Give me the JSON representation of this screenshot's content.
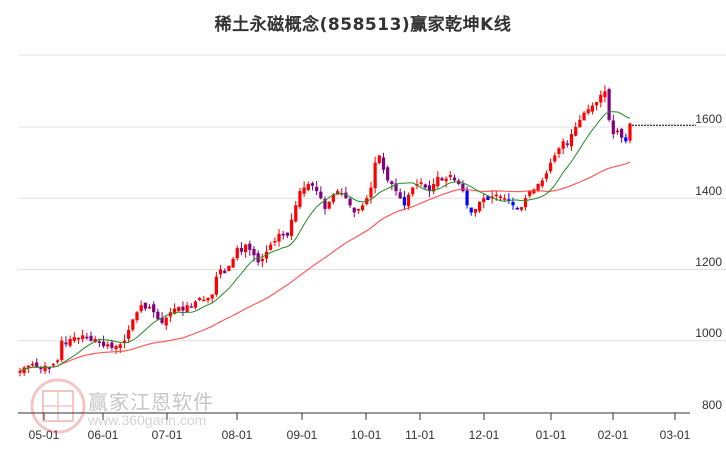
{
  "title": "稀土永磁概念(858513)赢家乾坤K线",
  "watermark": {
    "text": "赢家江恩软件",
    "url": "www.360gann.com",
    "seal": [
      "江",
      "赢",
      "恩",
      "家"
    ]
  },
  "colors": {
    "up": "#ff0000",
    "down": "#0000ff",
    "down_alt": "#800080",
    "ma_short": "#228b22",
    "ma_long": "#ff4040",
    "grid": "#e0e0e0",
    "axis": "#333333"
  },
  "chart_data": {
    "type": "candlestick",
    "title": "稀土永磁概念(858513)赢家乾坤K线",
    "xlabel": "",
    "ylabel": "",
    "ylim": [
      800,
      1730
    ],
    "y_ticks": [
      800,
      1000,
      1200,
      1400,
      1600
    ],
    "x_ticks": [
      "05-01",
      "06-01",
      "07-01",
      "08-01",
      "09-01",
      "10-01",
      "11-01",
      "12-01",
      "01-01",
      "02-01",
      "03-01"
    ],
    "last_price_line": 1605,
    "approx_closes": [
      915,
      925,
      930,
      935,
      925,
      920,
      930,
      925,
      935,
      945,
      1000,
      990,
      1005,
      1010,
      1008,
      1015,
      1010,
      1000,
      1005,
      995,
      985,
      990,
      980,
      985,
      990,
      1000,
      1030,
      1060,
      1080,
      1100,
      1090,
      1095,
      1080,
      1060,
      1050,
      1065,
      1080,
      1090,
      1095,
      1085,
      1100,
      1095,
      1110,
      1120,
      1115,
      1120,
      1130,
      1180,
      1200,
      1190,
      1210,
      1230,
      1260,
      1250,
      1270,
      1255,
      1240,
      1220,
      1230,
      1250,
      1270,
      1280,
      1300,
      1300,
      1295,
      1340,
      1380,
      1420,
      1430,
      1440,
      1435,
      1420,
      1400,
      1370,
      1390,
      1410,
      1420,
      1415,
      1400,
      1380,
      1360,
      1370,
      1380,
      1400,
      1430,
      1500,
      1520,
      1480,
      1450,
      1440,
      1420,
      1400,
      1380,
      1410,
      1430,
      1440,
      1445,
      1430,
      1420,
      1440,
      1460,
      1450,
      1455,
      1465,
      1450,
      1440,
      1420,
      1380,
      1360,
      1370,
      1390,
      1400,
      1395,
      1405,
      1410,
      1405,
      1400,
      1395,
      1380,
      1370,
      1375,
      1400,
      1420,
      1425,
      1440,
      1450,
      1470,
      1500,
      1520,
      1540,
      1560,
      1550,
      1580,
      1600,
      1620,
      1640,
      1650,
      1660,
      1670,
      1690,
      1700,
      1620,
      1580,
      1590,
      1570,
      1560,
      1610
    ],
    "series": [
      {
        "name": "K线",
        "type": "candlestick"
      },
      {
        "name": "短期均线",
        "color": "#228b22"
      },
      {
        "name": "长期均线",
        "color": "#ff4040"
      }
    ]
  },
  "axis": {
    "y_labels": [
      "1600",
      "1400",
      "1200",
      "1000",
      "800"
    ],
    "x_labels": [
      "05-01",
      "06-01",
      "07-01",
      "08-01",
      "09-01",
      "10-01",
      "11-01",
      "12-01",
      "01-01",
      "02-01",
      "03-01"
    ]
  }
}
